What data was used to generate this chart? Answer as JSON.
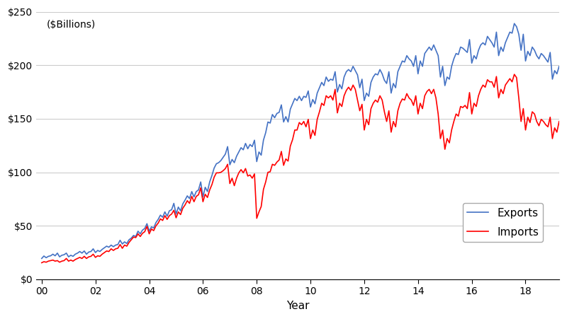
{
  "ylabel": "($Billions)",
  "xlabel": "Year",
  "export_color": "#4472C4",
  "import_color": "#FF0000",
  "export_linewidth": 1.2,
  "import_linewidth": 1.2,
  "ylim": [
    0,
    250
  ],
  "yticks": [
    0,
    50,
    100,
    150,
    200,
    250
  ],
  "background_color": "#ffffff",
  "grid_color": "#cccccc",
  "legend_labels": [
    "Exports",
    "Imports"
  ],
  "start_year": 2000,
  "end_year": 2019.25,
  "xtick_years": [
    2000,
    2002,
    2004,
    2006,
    2008,
    2010,
    2012,
    2014,
    2016,
    2018
  ],
  "exports": [
    19.5,
    21.8,
    20.2,
    21.5,
    22.0,
    23.5,
    22.0,
    24.5,
    21.0,
    22.5,
    23.0,
    24.5,
    21.0,
    22.5,
    21.5,
    23.5,
    24.5,
    26.0,
    24.5,
    26.5,
    23.5,
    25.5,
    26.0,
    28.5,
    25.0,
    27.0,
    26.0,
    28.0,
    29.5,
    31.0,
    30.0,
    32.0,
    30.5,
    32.0,
    32.5,
    36.5,
    33.0,
    35.0,
    33.5,
    37.0,
    38.5,
    41.0,
    40.0,
    45.0,
    42.5,
    46.0,
    47.5,
    52.0,
    45.0,
    49.0,
    48.0,
    53.0,
    56.0,
    60.0,
    58.0,
    63.0,
    59.0,
    64.0,
    65.0,
    71.0,
    61.0,
    67.5,
    64.0,
    70.5,
    74.0,
    78.0,
    75.5,
    82.0,
    77.0,
    82.0,
    83.5,
    91.0,
    77.0,
    86.0,
    82.0,
    91.0,
    97.0,
    104.0,
    108.0,
    109.0,
    111.0,
    114.0,
    117.0,
    124.0,
    107.0,
    112.0,
    109.0,
    115.0,
    119.0,
    123.0,
    121.0,
    127.0,
    122.0,
    126.0,
    124.0,
    130.0,
    110.0,
    119.0,
    116.0,
    130.0,
    137.0,
    147.0,
    146.0,
    154.0,
    151.0,
    155.0,
    156.0,
    163.0,
    147.0,
    152.0,
    147.0,
    159.0,
    164.0,
    169.0,
    167.0,
    171.0,
    167.0,
    171.0,
    170.0,
    176.0,
    161.0,
    168.0,
    164.0,
    174.0,
    179.0,
    184.0,
    181.0,
    189.0,
    185.0,
    187.0,
    186.0,
    194.0,
    175.0,
    182.0,
    178.0,
    189.0,
    194.0,
    196.0,
    194.0,
    199.0,
    195.0,
    191.0,
    179.0,
    187.0,
    167.0,
    174.0,
    171.0,
    184.0,
    189.0,
    192.0,
    191.0,
    196.0,
    192.0,
    186.0,
    183.0,
    194.0,
    174.0,
    183.0,
    179.0,
    194.0,
    199.0,
    204.0,
    203.0,
    209.0,
    206.0,
    204.0,
    199.0,
    209.0,
    192.0,
    204.0,
    199.0,
    211.0,
    214.0,
    217.0,
    214.0,
    219.0,
    214.0,
    209.0,
    189.0,
    199.0,
    181.0,
    189.0,
    187.0,
    199.0,
    206.0,
    211.0,
    210.0,
    217.0,
    216.0,
    214.0,
    212.0,
    224.0,
    202.0,
    209.0,
    206.0,
    214.0,
    219.0,
    221.0,
    219.0,
    227.0,
    224.0,
    221.0,
    217.0,
    231.0,
    209.0,
    217.0,
    213.0,
    221.0,
    226.0,
    231.0,
    230.0,
    239.0,
    236.0,
    229.0,
    214.0,
    229.0,
    204.0,
    213.0,
    209.0,
    217.0,
    214.0,
    209.0,
    206.0,
    211.0,
    209.0,
    206.0,
    203.0,
    212.0,
    187.0,
    195.0,
    192.0,
    199.0
  ],
  "imports": [
    15.5,
    16.5,
    16.0,
    17.0,
    17.5,
    18.0,
    17.0,
    17.5,
    16.0,
    17.0,
    17.5,
    19.5,
    17.0,
    18.0,
    17.0,
    18.5,
    19.5,
    20.5,
    19.5,
    21.5,
    19.5,
    21.0,
    21.5,
    23.5,
    20.5,
    22.0,
    21.5,
    23.5,
    25.0,
    26.5,
    26.0,
    28.5,
    27.0,
    28.5,
    29.0,
    32.5,
    29.0,
    32.0,
    31.0,
    34.5,
    37.0,
    39.5,
    39.0,
    42.5,
    40.0,
    43.0,
    44.5,
    49.5,
    42.5,
    47.0,
    45.5,
    50.0,
    52.5,
    56.5,
    55.0,
    59.5,
    56.0,
    59.5,
    61.0,
    64.5,
    57.5,
    63.0,
    60.5,
    66.5,
    69.5,
    73.5,
    71.0,
    77.5,
    72.5,
    77.5,
    79.0,
    85.5,
    72.5,
    79.5,
    76.5,
    83.5,
    88.5,
    95.5,
    99.5,
    99.5,
    100.0,
    101.5,
    103.5,
    107.5,
    89.5,
    94.5,
    87.5,
    94.5,
    99.5,
    102.5,
    99.5,
    103.5,
    96.5,
    97.5,
    94.5,
    98.5,
    57.0,
    63.0,
    68.0,
    84.0,
    91.0,
    100.0,
    100.5,
    107.5,
    106.5,
    109.5,
    111.5,
    119.5,
    106.5,
    112.5,
    110.5,
    124.5,
    130.5,
    139.5,
    139.5,
    146.5,
    144.5,
    147.5,
    142.5,
    149.5,
    131.5,
    139.5,
    134.5,
    149.5,
    156.5,
    164.5,
    162.5,
    171.5,
    169.5,
    171.5,
    167.5,
    177.5,
    155.5,
    164.5,
    161.5,
    171.5,
    176.5,
    179.5,
    176.5,
    181.5,
    177.5,
    167.5,
    157.5,
    163.5,
    139.5,
    149.5,
    144.5,
    159.5,
    164.5,
    167.5,
    165.5,
    171.5,
    167.5,
    156.5,
    147.5,
    157.5,
    137.5,
    147.5,
    142.5,
    157.5,
    164.5,
    168.5,
    167.5,
    173.5,
    169.5,
    167.5,
    162.5,
    171.5,
    154.5,
    164.5,
    159.5,
    171.5,
    175.5,
    177.5,
    173.5,
    177.5,
    169.5,
    154.5,
    131.5,
    139.5,
    121.5,
    131.5,
    127.5,
    139.5,
    147.5,
    154.5,
    152.5,
    161.5,
    160.5,
    162.5,
    159.5,
    174.5,
    154.5,
    164.5,
    161.5,
    171.5,
    177.5,
    181.5,
    179.5,
    186.5,
    184.5,
    184.5,
    179.5,
    189.5,
    169.5,
    177.5,
    173.5,
    181.5,
    184.5,
    187.5,
    184.5,
    191.5,
    188.5,
    169.5,
    147.5,
    159.5,
    139.5,
    151.5,
    146.5,
    156.5,
    154.5,
    147.5,
    143.5,
    149.5,
    147.5,
    144.5,
    142.5,
    151.5,
    131.5,
    141.5,
    137.5,
    147.5
  ]
}
